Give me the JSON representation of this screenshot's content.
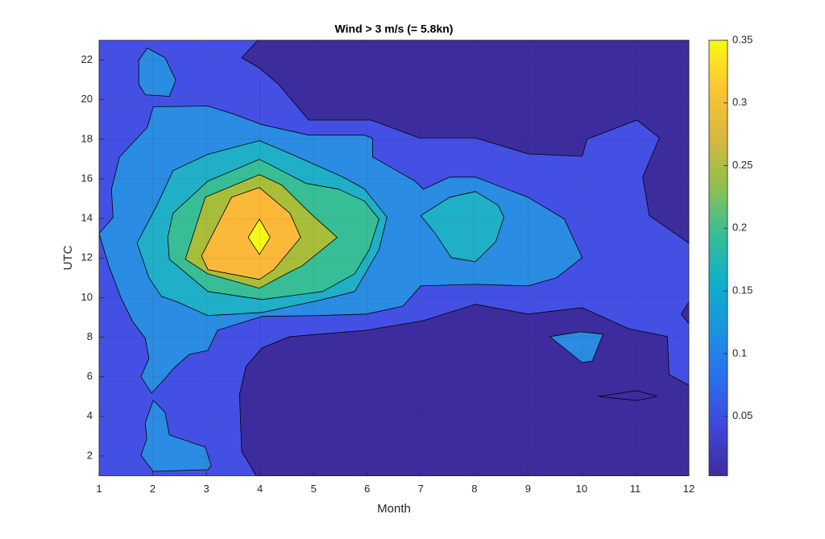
{
  "chart_data": {
    "type": "contourf",
    "title": "Wind > 3 m/s (= 5.8kn)",
    "xlabel": "Month",
    "ylabel": "UTC",
    "xlim": [
      1,
      12
    ],
    "xticks": [
      1,
      2,
      3,
      4,
      5,
      6,
      7,
      8,
      9,
      10,
      11,
      12
    ],
    "ylim": [
      1,
      23
    ],
    "yticks": [
      2,
      4,
      6,
      8,
      10,
      12,
      14,
      16,
      18,
      20,
      22
    ],
    "grid": true,
    "base": {
      "level": 0.05,
      "color": "#4450e4"
    },
    "levels": [
      {
        "level": 0.0025,
        "color": "#3d2c9e",
        "regions": [
          {
            "x": [
              3.96,
              3.66,
              3.99,
              4.34,
              4.91,
              6.07,
              6.97,
              8.02,
              9.0,
              10.01,
              10.1,
              11.03,
              11.45,
              11.14,
              11.26,
              11.66,
              12,
              12
            ],
            "y": [
              23,
              22.12,
              21.6,
              20.8,
              18.97,
              18.97,
              18.07,
              18.07,
              17.26,
              17.14,
              18.0,
              18.97,
              18.07,
              16.1,
              14.15,
              13.4,
              12.75,
              23
            ]
          },
          {
            "x": [
              3.93,
              3.66,
              3.62,
              3.74,
              4.04,
              4.56,
              5.99,
              7.05,
              8.02,
              9.0,
              10.01,
              10.88,
              11.6,
              11.63,
              12,
              12
            ],
            "y": [
              1,
              2.23,
              5.09,
              6.52,
              7.46,
              8.03,
              8.35,
              8.84,
              9.66,
              9.17,
              9.49,
              8.43,
              8.03,
              6.11,
              5.58,
              1
            ]
          },
          {
            "x": [
              12,
              11.86,
              12
            ],
            "y": [
              9.78,
              9.17,
              8.67
            ]
          },
          {
            "x": [
              10.31,
              11.03,
              11.41,
              11.03
            ],
            "y": [
              5.01,
              5.3,
              5.01,
              4.8
            ]
          }
        ]
      },
      {
        "level": 0.1,
        "color": "#2a8ce2",
        "regions": [
          {
            "x": [
              1.0,
              1.26,
              1.23,
              1.38,
              1.9,
              2.01,
              3.03,
              3.51,
              4.04,
              4.91,
              5.95,
              6.1,
              6.1,
              6.89,
              7.05,
              7.54,
              8.02,
              9.0,
              9.68,
              10.01,
              9.53,
              9.0,
              8.02,
              7.0,
              6.67,
              5.99,
              5.09,
              4.04,
              3.21,
              3.03,
              2.68,
              2.38,
              2.23,
              1.98,
              1.78,
              1.93,
              1.86,
              1.63,
              1.41,
              1.18
            ],
            "y": [
              13.24,
              14.05,
              15.47,
              17.1,
              18.61,
              19.64,
              19.68,
              19.27,
              18.74,
              18.21,
              18.21,
              18.05,
              17.11,
              15.89,
              15.48,
              16.09,
              16.09,
              15.07,
              13.97,
              12.02,
              11.0,
              10.59,
              10.67,
              10.59,
              9.57,
              9.17,
              9.09,
              9.05,
              8.35,
              7.33,
              7.13,
              6.4,
              5.91,
              5.18,
              6.0,
              6.93,
              7.95,
              8.77,
              9.98,
              11.61
            ]
          },
          {
            "x": [
              2.01,
              2.23,
              2.31,
              2.98,
              3.09,
              3.03,
              2.01,
              1.78,
              1.89,
              1.86
            ],
            "y": [
              4.81,
              4.2,
              3.06,
              2.45,
              1.51,
              1.31,
              1.22,
              2.03,
              2.85,
              3.67
            ]
          },
          {
            "x": [
              1.9,
              2.23,
              2.43,
              2.31,
              1.86,
              1.74,
              1.74
            ],
            "y": [
              22.61,
              22.12,
              20.98,
              20.17,
              20.25,
              20.78,
              22.0
            ]
          },
          {
            "x": [
              9.41,
              9.98,
              10.4,
              10.2,
              10.01
            ],
            "y": [
              8.03,
              8.27,
              8.15,
              6.8,
              6.72
            ]
          }
        ]
      },
      {
        "level": 0.15,
        "color": "#1fb0c8",
        "regions": [
          {
            "x": [
              1.71,
              2.08,
              2.38,
              3.03,
              3.99,
              4.34,
              4.86,
              5.54,
              5.95,
              6.37,
              6.22,
              5.77,
              5.17,
              4.04,
              3.03,
              2.46,
              2.16,
              1.93
            ],
            "y": [
              12.76,
              14.67,
              16.42,
              17.24,
              17.93,
              17.53,
              16.92,
              16.1,
              15.49,
              14.06,
              12.42,
              10.31,
              9.9,
              9.25,
              9.09,
              9.78,
              10.07,
              11.0
            ]
          },
          {
            "x": [
              7.0,
              7.54,
              8.02,
              8.44,
              8.55,
              8.4,
              8.02,
              7.57,
              7.27
            ],
            "y": [
              14.14,
              15.07,
              15.36,
              14.67,
              14.06,
              12.83,
              11.81,
              12.02,
              13.24
            ]
          }
        ]
      },
      {
        "level": 0.2,
        "color": "#38be96",
        "regions": [
          {
            "x": [
              2.28,
              2.38,
              3.03,
              3.99,
              4.34,
              4.86,
              5.47,
              5.95,
              6.22,
              6.04,
              5.77,
              5.17,
              4.04,
              3.03,
              2.31
            ],
            "y": [
              13.04,
              14.26,
              15.89,
              16.99,
              16.5,
              15.77,
              15.48,
              14.87,
              13.97,
              12.43,
              11.21,
              10.31,
              9.9,
              10.31,
              11.94
            ]
          }
        ]
      },
      {
        "level": 0.25,
        "color": "#a8bd3a",
        "regions": [
          {
            "x": [
              2.61,
              2.98,
              3.99,
              4.41,
              4.94,
              5.44,
              4.79,
              4.49,
              3.99,
              3.03
            ],
            "y": [
              11.94,
              15.07,
              16.21,
              15.68,
              14.26,
              13.04,
              11.61,
              11.2,
              10.47,
              11.2
            ]
          }
        ]
      },
      {
        "level": 0.3,
        "color": "#fbb93a",
        "regions": [
          {
            "x": [
              2.91,
              3.47,
              3.99,
              4.56,
              4.76,
              4.26,
              3.99,
              3.03
            ],
            "y": [
              12.1,
              15.07,
              15.56,
              14.26,
              13.04,
              11.41,
              10.92,
              11.41
            ]
          }
        ]
      },
      {
        "level": 0.35,
        "color": "#f5f916",
        "regions": [
          {
            "x": [
              3.99,
              4.19,
              3.99,
              3.78
            ],
            "y": [
              13.97,
              13.04,
              12.18,
              13.04
            ]
          }
        ]
      }
    ],
    "colorbar": {
      "lim": [
        0.0025,
        0.35
      ],
      "ticks": [
        0.05,
        0.1,
        0.15,
        0.2,
        0.25,
        0.3,
        0.35
      ],
      "colormap": [
        "#3e2c9e",
        "#3f46d8",
        "#2a6ef0",
        "#1c92e0",
        "#0eb0c8",
        "#38be96",
        "#90c04e",
        "#d8b83e",
        "#fdc433",
        "#f7f914"
      ]
    }
  }
}
